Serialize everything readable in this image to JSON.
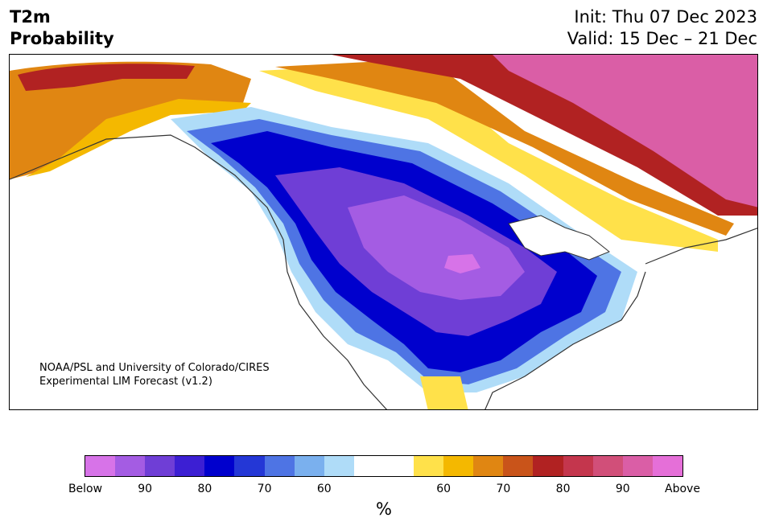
{
  "title": {
    "line1": "T2m",
    "line2": "Probability"
  },
  "init": "Init: Thu 07 Dec 2023",
  "valid": "Valid: 15 Dec – 21 Dec",
  "credit": {
    "line1": "NOAA/PSL and University of Colorado/CIRES",
    "line2": "Experimental LIM Forecast (v1.2)"
  },
  "colorbar": {
    "colors": [
      "#d773e8",
      "#a45ce3",
      "#6f3ed6",
      "#3c1fd3",
      "#0000cd",
      "#2437d6",
      "#4e74e4",
      "#7ab0ee",
      "#afdcf8",
      "#ffffff",
      "#ffffff",
      "#ffe14a",
      "#f4b800",
      "#e08612",
      "#c9541a",
      "#b12222",
      "#c4364d",
      "#d14f79",
      "#da5ea6",
      "#e56fd8"
    ],
    "tick_labels": [
      "Below",
      "90",
      "80",
      "70",
      "60",
      "60",
      "70",
      "80",
      "90",
      "Above"
    ],
    "unit": "%"
  },
  "map": {
    "region": "North America",
    "legend_colors": {
      "below_strong": "#a45ce3",
      "below_mid": "#0000cd",
      "below_weak": "#afdcf8",
      "neutral": "#ffffff",
      "above_weak": "#ffe14a",
      "above_mid": "#e08612",
      "above_strong": "#b12222",
      "above_max": "#da5ea6"
    }
  }
}
